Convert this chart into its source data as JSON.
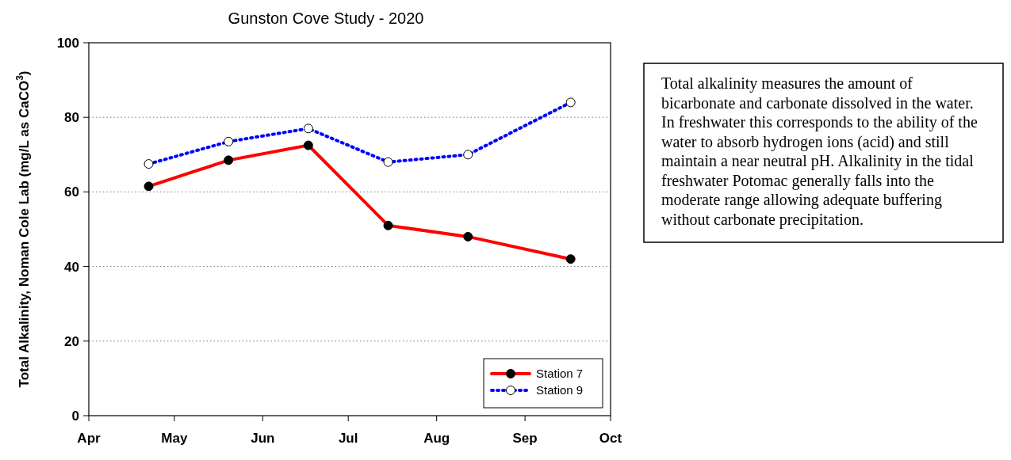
{
  "chart_data": {
    "type": "line",
    "title": "Gunston Cove Study - 2020",
    "ylabel": "Total Alkalinity, Noman Cole Lab (mg/L as CaCO$^{3}$)",
    "x": [
      "2020-04-22",
      "2020-05-20",
      "2020-06-17",
      "2020-07-15",
      "2020-08-12",
      "2020-09-17"
    ],
    "series": [
      {
        "name": "Station 7",
        "color": "#ff0000",
        "values": [
          61.5,
          68.5,
          72.5,
          51,
          48,
          42
        ],
        "marker": "circle",
        "line_style": "solid"
      },
      {
        "name": "Station 9",
        "color": "#0000ff",
        "values": [
          67.5,
          73.5,
          77,
          68,
          70,
          84
        ],
        "marker": "circle",
        "line_style": "dotted"
      }
    ],
    "xlim": [
      "2020-04-01",
      "2020-10-01"
    ],
    "xticks": [
      {
        "value": "2020-04-01",
        "label": "Apr"
      },
      {
        "value": "2020-05-01",
        "label": "May"
      },
      {
        "value": "2020-06-01",
        "label": "Jun"
      },
      {
        "value": "2020-07-01",
        "label": "Jul"
      },
      {
        "value": "2020-08-01",
        "label": "Aug"
      },
      {
        "value": "2020-09-01",
        "label": "Sep"
      },
      {
        "value": "2020-10-01",
        "label": "Oct"
      }
    ],
    "ylim": [
      0,
      100
    ],
    "yticks": [
      0,
      20,
      40,
      60,
      80,
      100
    ],
    "grid": "y",
    "legend": "bottom right",
    "annotations": [
      "Total alkalinity measures the amount of bicarbonate and carbonate dissolved in the water. In freshwater this corresponds to the ability of the water to absorb hydrogen ions (acid) and still maintain a near neutral pH. Alkalinity in the tidal freshwater Potomac generally falls into the moderate range allowing adequate buffering without carbonate precipitation."
    ]
  }
}
